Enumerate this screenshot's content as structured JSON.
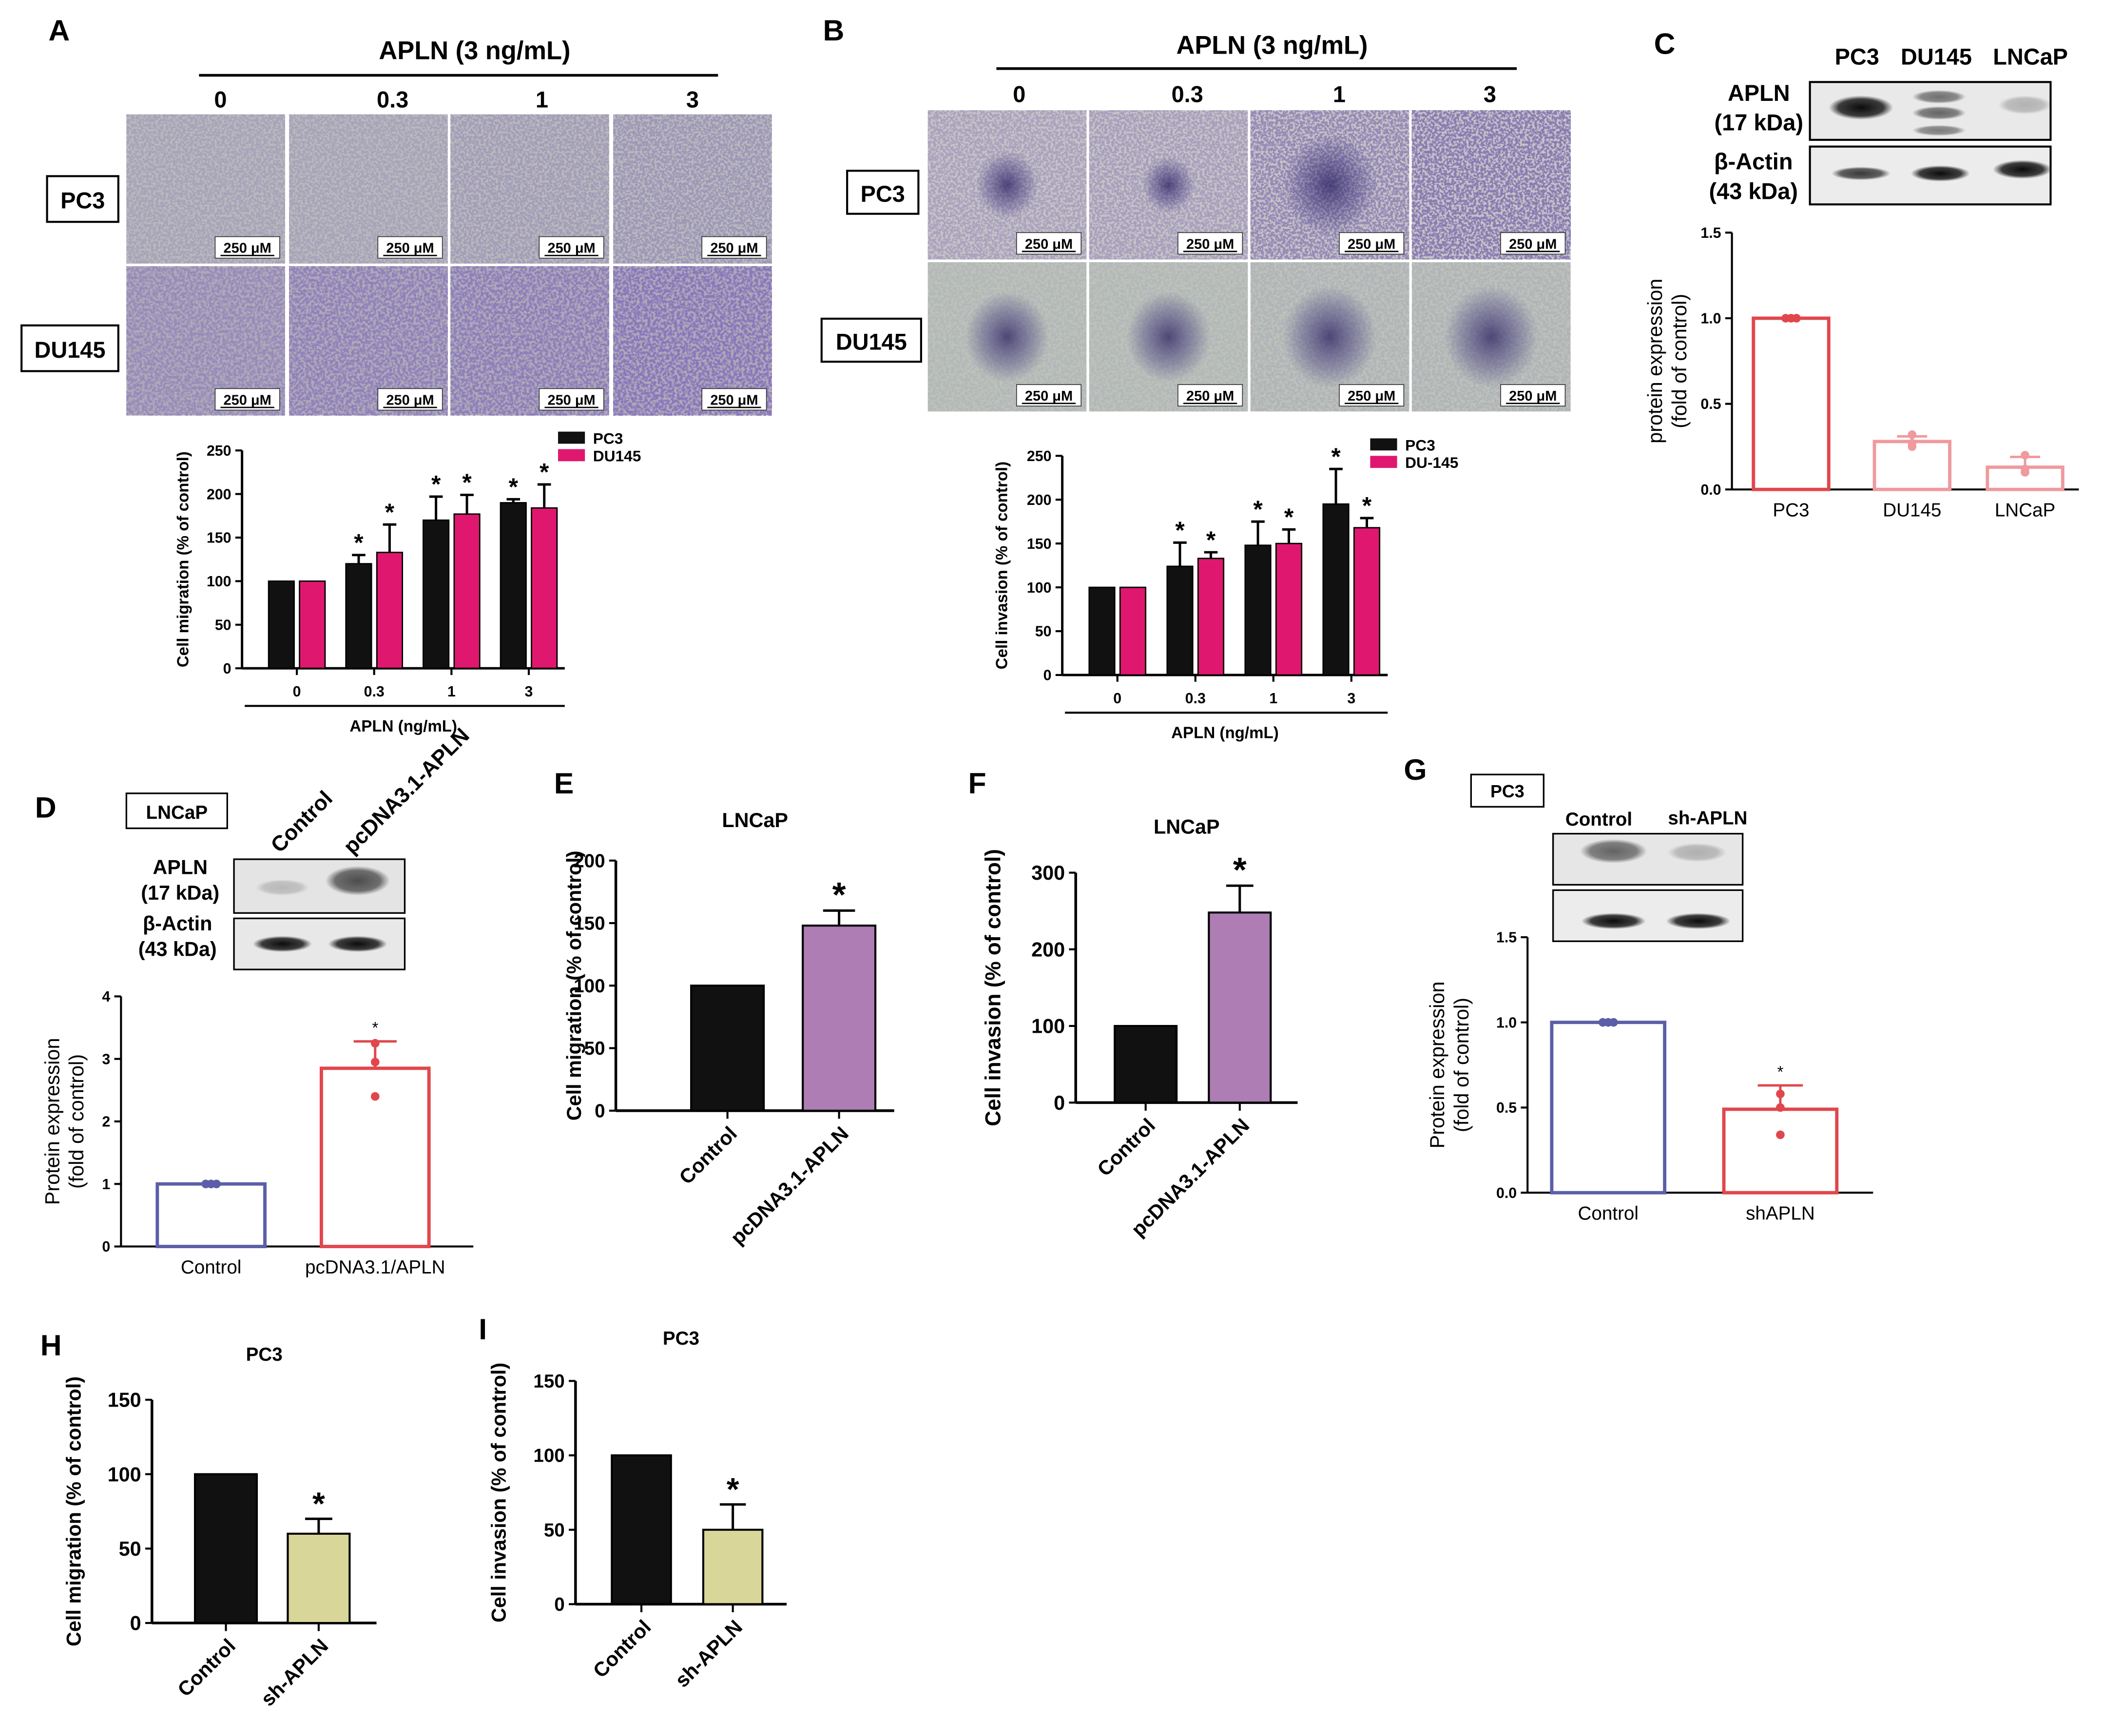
{
  "colors": {
    "black": "#111111",
    "magenta": "#e0176f",
    "red": "#e0474c",
    "pink": "#ef9a9e",
    "blue": "#5b5fa8",
    "purple": "#ad7db3",
    "khaki": "#d9d69a",
    "grid": "#000000"
  },
  "panel_labels": [
    "A",
    "B",
    "C",
    "D",
    "E",
    "F",
    "G",
    "H",
    "I"
  ],
  "micro": {
    "treatment_label": "APLN (3 ng/mL)",
    "doses": [
      "0",
      "0.3",
      "1",
      "3"
    ],
    "rows": [
      "PC3",
      "DU145"
    ],
    "scale_bar": "250 μM"
  },
  "blots": {
    "C": {
      "lanes": [
        "PC3",
        "DU145",
        "LNCaP"
      ],
      "bands": [
        "APLN\n(17 kDa)",
        "β-Actin\n(43 kDa)"
      ]
    },
    "D": {
      "cell": "LNCaP",
      "lanes": [
        "Control",
        "pcDNA3.1-APLN"
      ],
      "bands": [
        "APLN\n(17 kDa)",
        "β-Actin\n(43 kDa)"
      ]
    },
    "G": {
      "cell": "PC3",
      "lanes": [
        "Control",
        "sh-APLN"
      ]
    }
  },
  "chart_data": [
    {
      "id": "A",
      "type": "bar",
      "title": "",
      "categories": [
        "0",
        "0.3",
        "1",
        "3"
      ],
      "xlabel": "APLN (ng/mL)",
      "ylabel": "Cell migration (% of control)",
      "ylim": [
        0,
        250
      ],
      "yticks": [
        "0",
        "50",
        "100",
        "150",
        "200",
        "250"
      ],
      "series": [
        {
          "name": "PC3",
          "values": [
            100,
            120,
            170,
            190
          ],
          "errors": [
            0,
            10,
            27,
            4
          ],
          "sig": [
            false,
            true,
            true,
            true
          ]
        },
        {
          "name": "DU145",
          "values": [
            100,
            133,
            177,
            184
          ],
          "errors": [
            0,
            32,
            22,
            27
          ],
          "sig": [
            false,
            true,
            true,
            true
          ]
        }
      ],
      "legend": "top-right",
      "sig_mark": "*"
    },
    {
      "id": "B",
      "type": "bar",
      "title": "",
      "categories": [
        "0",
        "0.3",
        "1",
        "3"
      ],
      "xlabel": "APLN (ng/mL)",
      "ylabel": "Cell invasion (% of control)",
      "ylim": [
        0,
        250
      ],
      "yticks": [
        "0",
        "50",
        "100",
        "150",
        "200",
        "250"
      ],
      "series": [
        {
          "name": "PC3",
          "values": [
            100,
            124,
            148,
            195
          ],
          "errors": [
            0,
            27,
            27,
            40
          ],
          "sig": [
            false,
            true,
            true,
            true
          ]
        },
        {
          "name": "DU-145",
          "values": [
            100,
            133,
            150,
            168
          ],
          "errors": [
            0,
            7,
            16,
            11
          ],
          "sig": [
            false,
            true,
            true,
            true
          ]
        }
      ],
      "legend": "top-right",
      "sig_mark": "*"
    },
    {
      "id": "C",
      "type": "bar",
      "title": "",
      "categories": [
        "PC3",
        "DU145",
        "LNCaP"
      ],
      "ylabel": "protein expression\n(fold of control)",
      "ylim": [
        0,
        1.5
      ],
      "yticks": [
        "0.0",
        "0.5",
        "1.0",
        "1.5"
      ],
      "values": [
        1.0,
        0.28,
        0.13
      ],
      "errors": [
        0,
        0.03,
        0.06
      ],
      "points": [
        [
          1.0,
          1.0,
          1.0
        ],
        [
          0.32,
          0.27,
          0.25
        ],
        [
          0.2,
          0.1,
          0.12
        ]
      ]
    },
    {
      "id": "D",
      "type": "bar",
      "title": "",
      "categories": [
        "Control",
        "pcDNA3.1/APLN"
      ],
      "ylabel": "Protein expression\n(fold of control)",
      "ylim": [
        0,
        4
      ],
      "yticks": [
        "0",
        "1",
        "2",
        "3",
        "4"
      ],
      "values": [
        1.0,
        2.85
      ],
      "errors": [
        0,
        0.43
      ],
      "points": [
        [
          1.0,
          1.0,
          1.0
        ],
        [
          3.25,
          2.95,
          2.4
        ]
      ],
      "sig": [
        false,
        true
      ],
      "sig_mark": "*"
    },
    {
      "id": "E",
      "type": "bar",
      "title": "LNCaP",
      "categories": [
        "Control",
        "pcDNA3.1-APLN"
      ],
      "ylabel": "Cell migration (% of control)",
      "ylim": [
        0,
        200
      ],
      "yticks": [
        "0",
        "50",
        "100",
        "150",
        "200"
      ],
      "values": [
        100,
        148
      ],
      "errors": [
        0,
        12
      ],
      "sig": [
        false,
        true
      ],
      "sig_mark": "*"
    },
    {
      "id": "F",
      "type": "bar",
      "title": "LNCaP",
      "categories": [
        "Control",
        "pcDNA3.1-APLN"
      ],
      "ylabel": "Cell invasion (% of control)",
      "ylim": [
        0,
        300
      ],
      "yticks": [
        "0",
        "100",
        "200",
        "300"
      ],
      "values": [
        100,
        248
      ],
      "errors": [
        0,
        35
      ],
      "sig": [
        false,
        true
      ],
      "sig_mark": "*"
    },
    {
      "id": "G",
      "type": "bar",
      "title": "",
      "categories": [
        "Control",
        "shAPLN"
      ],
      "ylabel": "Protein expression\n(fold of control)",
      "ylim": [
        0,
        1.5
      ],
      "yticks": [
        "0.0",
        "0.5",
        "1.0",
        "1.5"
      ],
      "values": [
        1.0,
        0.49
      ],
      "errors": [
        0,
        0.14
      ],
      "points": [
        [
          1.0,
          1.0,
          1.0
        ],
        [
          0.58,
          0.5,
          0.34
        ]
      ],
      "sig": [
        false,
        true
      ],
      "sig_mark": "*"
    },
    {
      "id": "H",
      "type": "bar",
      "title": "PC3",
      "categories": [
        "Control",
        "sh-APLN"
      ],
      "ylabel": "Cell migration (% of control)",
      "ylim": [
        0,
        150
      ],
      "yticks": [
        "0",
        "50",
        "100",
        "150"
      ],
      "values": [
        100,
        60
      ],
      "errors": [
        0,
        10
      ],
      "sig": [
        false,
        true
      ],
      "sig_mark": "*"
    },
    {
      "id": "I",
      "type": "bar",
      "title": "PC3",
      "categories": [
        "Control",
        "sh-APLN"
      ],
      "ylabel": "Cell invasion (% of control)",
      "ylim": [
        0,
        150
      ],
      "yticks": [
        "0",
        "50",
        "100",
        "150"
      ],
      "values": [
        100,
        50
      ],
      "errors": [
        0,
        17
      ],
      "sig": [
        false,
        true
      ],
      "sig_mark": "*"
    }
  ]
}
